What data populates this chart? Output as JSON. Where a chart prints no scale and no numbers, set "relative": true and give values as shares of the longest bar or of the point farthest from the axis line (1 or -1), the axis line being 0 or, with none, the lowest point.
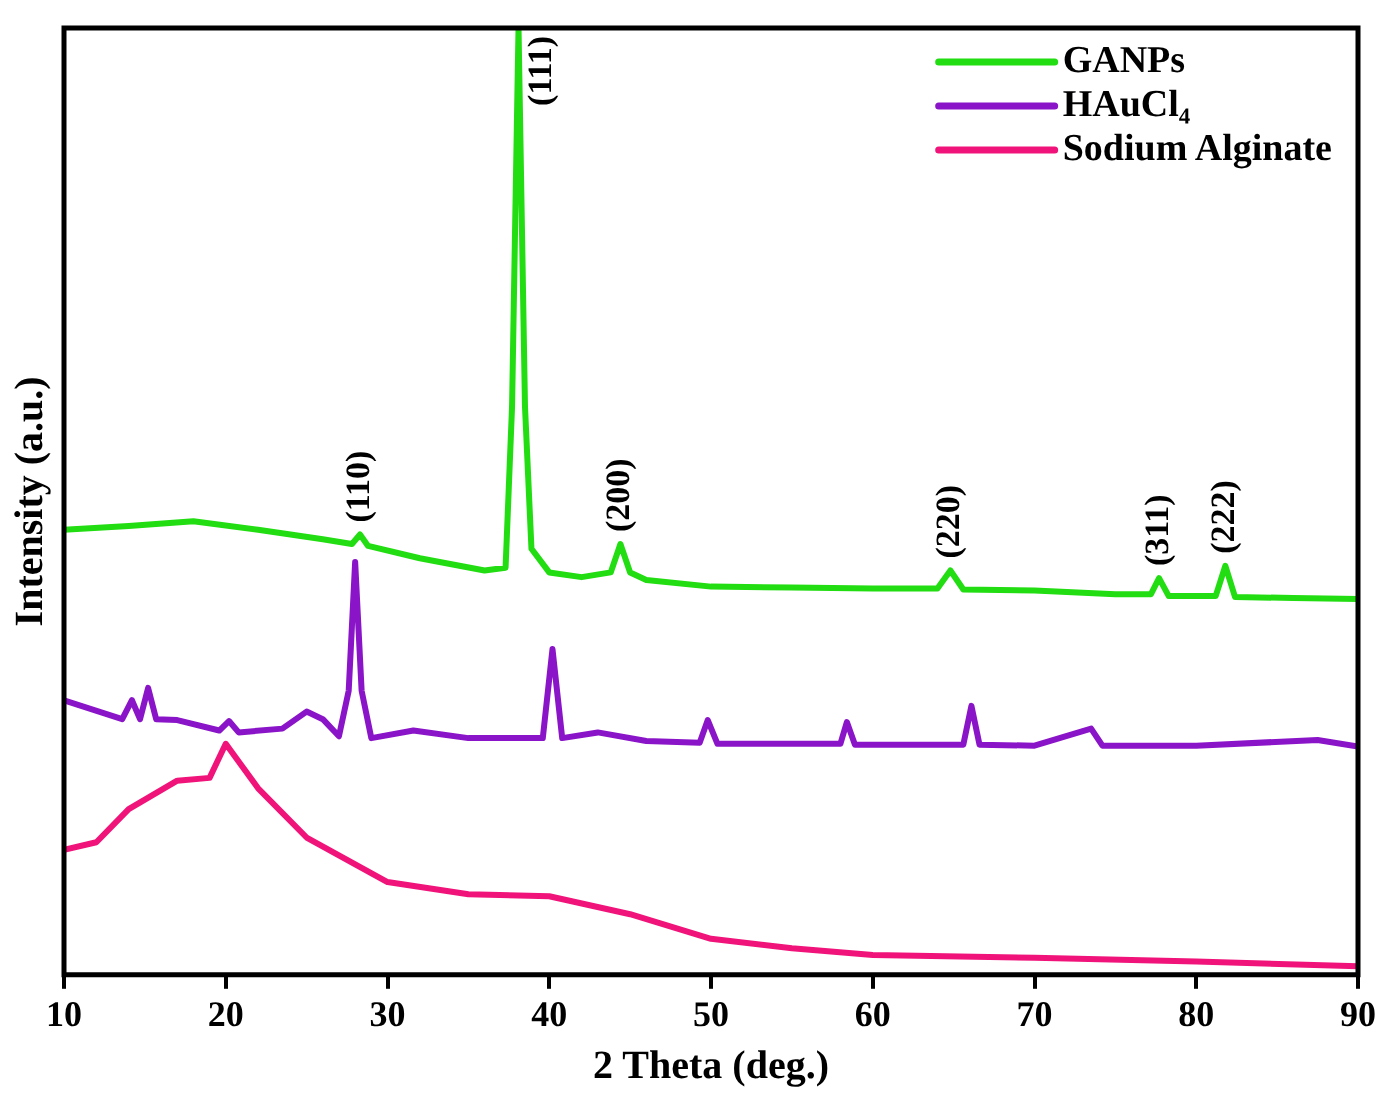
{
  "chart_data": {
    "type": "line",
    "xlabel": "2 Theta (deg.)",
    "ylabel": "Intensity (a.u.)",
    "relative": true,
    "xlim": [
      10,
      90
    ],
    "xticks": [
      10,
      20,
      30,
      40,
      50,
      60,
      70,
      80,
      90
    ],
    "legend": "top right",
    "grid": false,
    "marker": "none",
    "series": [
      {
        "name": "GANPs",
        "color": "#22dd11",
        "x": [
          10,
          14,
          18,
          22,
          26,
          27.8,
          28.3,
          28.8,
          32,
          36,
          37.3,
          37.7,
          38.1,
          38.5,
          38.9,
          40,
          42,
          43.8,
          44.4,
          45,
          46,
          50,
          55,
          60,
          64,
          64.8,
          65.6,
          70,
          75,
          77.2,
          77.7,
          78.3,
          81.2,
          81.8,
          82.4,
          86,
          90
        ],
        "values": [
          0.47,
          0.474,
          0.479,
          0.47,
          0.46,
          0.455,
          0.465,
          0.453,
          0.44,
          0.427,
          0.43,
          0.6,
          1.0,
          0.6,
          0.45,
          0.425,
          0.42,
          0.425,
          0.455,
          0.425,
          0.417,
          0.41,
          0.409,
          0.408,
          0.408,
          0.427,
          0.407,
          0.406,
          0.402,
          0.402,
          0.419,
          0.4,
          0.4,
          0.432,
          0.399,
          0.398,
          0.397
        ]
      },
      {
        "name": "HAuCl₄",
        "color": "#8a14c8",
        "x": [
          10,
          13.6,
          14.2,
          14.7,
          15.2,
          15.7,
          17,
          19.6,
          20.2,
          20.8,
          23.5,
          25,
          26,
          27,
          27.6,
          28,
          28.4,
          29,
          31.6,
          35,
          39.6,
          40.2,
          40.8,
          43,
          46,
          49.3,
          49.8,
          50.4,
          55,
          58,
          58.4,
          58.9,
          62,
          65.6,
          66.1,
          66.6,
          70,
          73.5,
          74.2,
          80,
          87.5,
          90
        ],
        "values": [
          0.29,
          0.27,
          0.29,
          0.27,
          0.303,
          0.27,
          0.269,
          0.258,
          0.268,
          0.256,
          0.26,
          0.278,
          0.27,
          0.252,
          0.3,
          0.436,
          0.3,
          0.25,
          0.258,
          0.25,
          0.25,
          0.344,
          0.25,
          0.256,
          0.247,
          0.245,
          0.269,
          0.244,
          0.244,
          0.244,
          0.267,
          0.243,
          0.243,
          0.243,
          0.284,
          0.243,
          0.242,
          0.26,
          0.242,
          0.242,
          0.248,
          0.241
        ]
      },
      {
        "name": "Sodium Alginate",
        "color": "#f0147a",
        "x": [
          10,
          12,
          14,
          17,
          19,
          20,
          22,
          25,
          30,
          35,
          40,
          45,
          50,
          55,
          60,
          70,
          80,
          90
        ],
        "values": [
          0.132,
          0.14,
          0.175,
          0.205,
          0.208,
          0.244,
          0.197,
          0.145,
          0.098,
          0.085,
          0.083,
          0.064,
          0.038,
          0.028,
          0.021,
          0.018,
          0.014,
          0.009
        ]
      }
    ],
    "annotations": [
      {
        "text": "(110)",
        "x": 28.3,
        "y": 0.465
      },
      {
        "text": "(111)",
        "x": 38.1,
        "y": 1.0
      },
      {
        "text": "(200)",
        "x": 44.4,
        "y": 0.455
      },
      {
        "text": "(220)",
        "x": 64.8,
        "y": 0.427
      },
      {
        "text": "(311)",
        "x": 77.7,
        "y": 0.419
      },
      {
        "text": "(222)",
        "x": 81.8,
        "y": 0.432
      }
    ]
  }
}
